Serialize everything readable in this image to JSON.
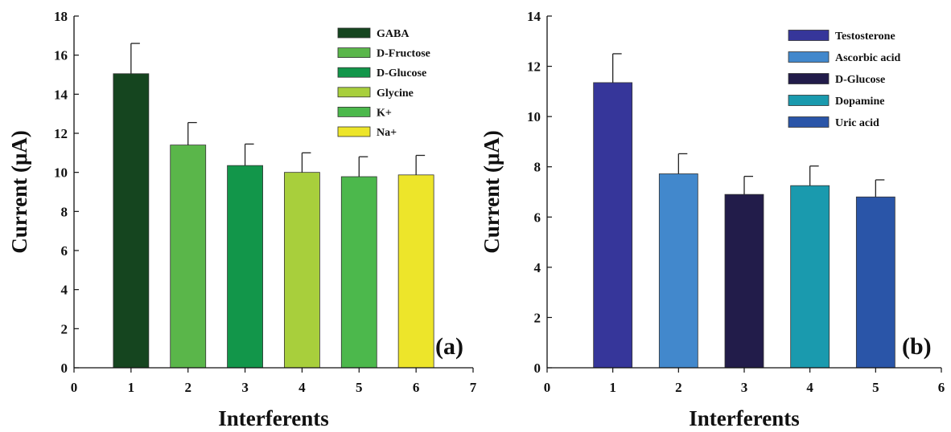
{
  "chart_data": [
    {
      "type": "bar",
      "panel_label": "(a)",
      "xlabel": "Interferents",
      "ylabel": "Current (μA)",
      "xlim": [
        0,
        7
      ],
      "ylim": [
        0,
        18
      ],
      "xticks": [
        0,
        1,
        2,
        3,
        4,
        5,
        6,
        7
      ],
      "yticks": [
        0,
        2,
        4,
        6,
        8,
        10,
        12,
        14,
        16,
        18
      ],
      "grid": false,
      "legend_position": "top-right",
      "series": [
        {
          "name": "GABA",
          "x": 1,
          "value": 15.05,
          "error": 1.55,
          "color": "#15451f"
        },
        {
          "name": "D-Fructose",
          "x": 2,
          "value": 11.4,
          "error": 1.15,
          "color": "#5ab64a"
        },
        {
          "name": "D-Glucose",
          "x": 3,
          "value": 10.35,
          "error": 1.1,
          "color": "#12964a"
        },
        {
          "name": "Glycine",
          "x": 4,
          "value": 10.0,
          "error": 1.0,
          "color": "#a8cf3c"
        },
        {
          "name": "K+",
          "x": 5,
          "value": 9.78,
          "error": 1.02,
          "color": "#4cb84c"
        },
        {
          "name": "Na+",
          "x": 6,
          "value": 9.87,
          "error": 1.0,
          "color": "#ede52a"
        }
      ]
    },
    {
      "type": "bar",
      "panel_label": "(b)",
      "xlabel": "Interferents",
      "ylabel": "Current (μA)",
      "xlim": [
        0,
        6
      ],
      "ylim": [
        0,
        14
      ],
      "xticks": [
        0,
        1,
        2,
        3,
        4,
        5,
        6
      ],
      "yticks": [
        0,
        2,
        4,
        6,
        8,
        10,
        12,
        14
      ],
      "grid": false,
      "legend_position": "top-right",
      "series": [
        {
          "name": "Testosterone",
          "x": 1,
          "value": 11.35,
          "error": 1.15,
          "color": "#36369a"
        },
        {
          "name": "Ascorbic acid",
          "x": 2,
          "value": 7.72,
          "error": 0.8,
          "color": "#4288cc"
        },
        {
          "name": "D-Glucose",
          "x": 3,
          "value": 6.9,
          "error": 0.72,
          "color": "#221c4a"
        },
        {
          "name": "Dopamine",
          "x": 4,
          "value": 7.25,
          "error": 0.78,
          "color": "#1a9aae"
        },
        {
          "name": "Uric acid",
          "x": 5,
          "value": 6.8,
          "error": 0.68,
          "color": "#2a55a8"
        }
      ]
    }
  ]
}
